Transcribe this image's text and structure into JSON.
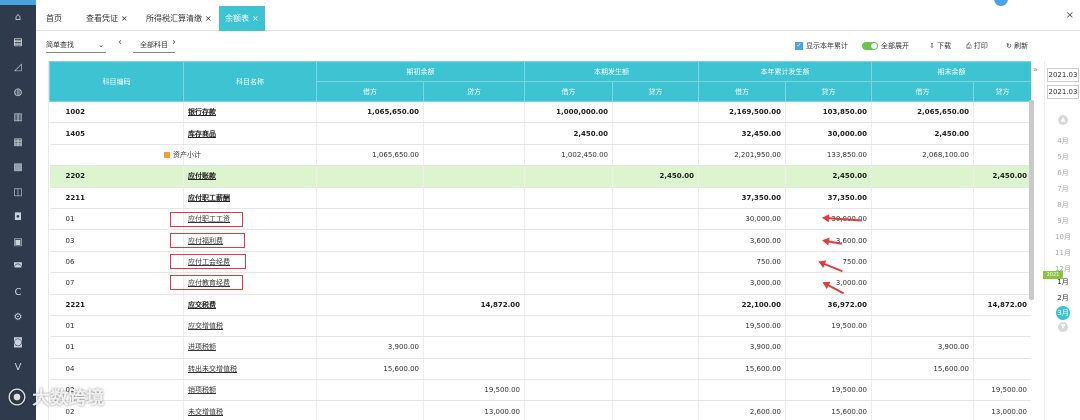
{
  "tabs": [
    {
      "label": "首页",
      "closable": false
    },
    {
      "label": "查看凭证",
      "closable": true
    },
    {
      "label": "所得税汇算清缴",
      "closable": true
    },
    {
      "label": "余额表",
      "closable": true
    }
  ],
  "toolbar": {
    "filter_select": "简单查找",
    "subject_filter": "全部科目",
    "show_year_total": "显示本年累计",
    "expand_all": "全部展开",
    "download": "下载",
    "print": "打印",
    "refresh": "刷新"
  },
  "table": {
    "headers": {
      "code": "科目编码",
      "name": "科目名称",
      "opening": "期初余额",
      "period": "本期发生额",
      "ytd": "本年累计发生额",
      "closing": "期末余额",
      "debit": "借方",
      "credit": "贷方"
    },
    "rows": [
      {
        "code": "1002",
        "name": "银行存款",
        "v": [
          "1,065,650.00",
          "",
          "1,000,000.00",
          "",
          "2,169,500.00",
          "103,850.00",
          "2,065,650.00",
          ""
        ],
        "style": "bold"
      },
      {
        "code": "1405",
        "name": "库存商品",
        "v": [
          "",
          "",
          "2,450.00",
          "",
          "32,450.00",
          "30,000.00",
          "2,450.00",
          ""
        ],
        "style": "bold"
      },
      {
        "code": "",
        "name": "资产小计",
        "v": [
          "1,065,650.00",
          "",
          "1,002,450.00",
          "",
          "2,201,950.00",
          "133,850.00",
          "2,068,100.00",
          ""
        ],
        "style": "subtotal"
      },
      {
        "code": "2202",
        "name": "应付账款",
        "v": [
          "",
          "",
          "",
          "2,450.00",
          "",
          "2,450.00",
          "",
          "2,450.00"
        ],
        "style": "green"
      },
      {
        "code": "2211",
        "name": "应付职工薪酬",
        "v": [
          "",
          "",
          "",
          "",
          "37,350.00",
          "37,350.00",
          "",
          ""
        ],
        "style": "bold"
      },
      {
        "code": "01",
        "name": "应付职工工资",
        "v": [
          "",
          "",
          "",
          "",
          "30,000.00",
          "30,000.00",
          "",
          ""
        ],
        "style": ""
      },
      {
        "code": "03",
        "name": "应付福利费",
        "v": [
          "",
          "",
          "",
          "",
          "3,600.00",
          "3,600.00",
          "",
          ""
        ],
        "style": ""
      },
      {
        "code": "06",
        "name": "应付工会经费",
        "v": [
          "",
          "",
          "",
          "",
          "750.00",
          "750.00",
          "",
          ""
        ],
        "style": ""
      },
      {
        "code": "07",
        "name": "应付教育经费",
        "v": [
          "",
          "",
          "",
          "",
          "3,000.00",
          "3,000.00",
          "",
          ""
        ],
        "style": ""
      },
      {
        "code": "2221",
        "name": "应交税费",
        "v": [
          "",
          "14,872.00",
          "",
          "",
          "22,100.00",
          "36,972.00",
          "",
          "14,872.00"
        ],
        "style": "bold"
      },
      {
        "code": "01",
        "name": "应交增值税",
        "v": [
          "",
          "",
          "",
          "",
          "19,500.00",
          "19,500.00",
          "",
          ""
        ],
        "style": ""
      },
      {
        "code": "01",
        "name": "进项税额",
        "v": [
          "3,900.00",
          "",
          "",
          "",
          "3,900.00",
          "",
          "3,900.00",
          ""
        ],
        "style": ""
      },
      {
        "code": "04",
        "name": "转出未交增值税",
        "v": [
          "15,600.00",
          "",
          "",
          "",
          "15,600.00",
          "",
          "15,600.00",
          ""
        ],
        "style": ""
      },
      {
        "code": "02",
        "name": "销项税额",
        "v": [
          "",
          "19,500.00",
          "",
          "",
          "",
          "19,500.00",
          "",
          "19,500.00"
        ],
        "style": ""
      },
      {
        "code": "02",
        "name": "未交增值税",
        "v": [
          "",
          "13,000.00",
          "",
          "",
          "2,600.00",
          "15,600.00",
          "",
          "13,000.00"
        ],
        "style": ""
      }
    ]
  },
  "period_panel": {
    "start": "2021.03",
    "end": "2021.03",
    "year_badge": "2021",
    "months": [
      "4月",
      "5月",
      "6月",
      "7月",
      "8月",
      "9月",
      "10月",
      "11月",
      "12月",
      "1月",
      "2月"
    ],
    "current_month": "3月"
  },
  "watermark": "大数跨境",
  "colors": {
    "header": "#3ec3d3",
    "sidebar": "#2f3b4c",
    "highlight": "#e23b3b",
    "green_row": "#dcf5cf"
  }
}
